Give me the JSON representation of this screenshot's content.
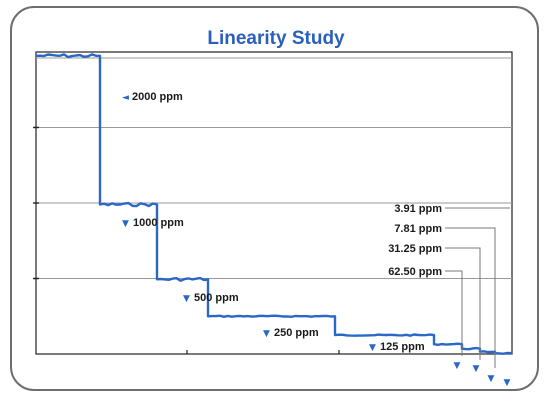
{
  "chart_data": {
    "type": "line",
    "title": "Linearity Study",
    "xlabel": "",
    "ylabel": "",
    "grid": true,
    "y_gridlines": 4,
    "line_color": "#2a67c6",
    "concentration_unit": "ppm",
    "series": [
      {
        "steps": [
          {
            "concentration": "2000",
            "value": 3.95
          },
          {
            "concentration": "1000",
            "value": 1.98
          },
          {
            "concentration": "500",
            "value": 0.99
          },
          {
            "concentration": "250",
            "value": 0.5
          },
          {
            "concentration": "125",
            "value": 0.25
          },
          {
            "concentration": "62.50",
            "value": 0.13
          },
          {
            "concentration": "31.25",
            "value": 0.07
          },
          {
            "concentration": "7.81",
            "value": 0.03
          },
          {
            "concentration": "3.91",
            "value": 0.01
          }
        ]
      }
    ],
    "labels": {
      "l2000": "2000 ppm",
      "l1000": "1000 ppm",
      "l500": "500 ppm",
      "l250": "250 ppm",
      "l125": "125 ppm",
      "l391": "3.91 ppm",
      "l781": "7.81 ppm",
      "l3125": "31.25 ppm",
      "l6250": "62.50 ppm"
    },
    "markers": {
      "left": "◄",
      "down": "▼"
    }
  }
}
